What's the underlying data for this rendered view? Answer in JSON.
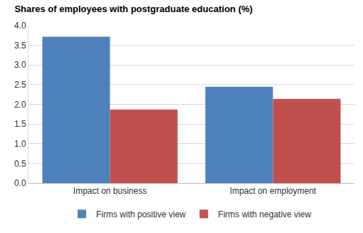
{
  "chart_data": {
    "type": "bar",
    "title": "Shares of employees with postgraduate education (%)",
    "categories": [
      "Impact on business",
      "Impact on employment"
    ],
    "series": [
      {
        "name": "Firms with positive view",
        "color": "#4f81bd",
        "values": [
          3.72,
          2.45
        ]
      },
      {
        "name": "Firms with negative view",
        "color": "#c0504d",
        "values": [
          1.87,
          2.14
        ]
      }
    ],
    "ylim": [
      0,
      4
    ],
    "yticks": [
      {
        "value": 0,
        "label": "0.0"
      },
      0.5,
      {
        "value": 1,
        "label": "1.0"
      },
      1.5,
      {
        "value": 2,
        "label": "2.0"
      },
      2.5,
      {
        "value": 3,
        "label": "3.0"
      },
      3.5,
      {
        "value": 4,
        "label": "4.0"
      }
    ],
    "grid": true,
    "legend": "bottom"
  }
}
